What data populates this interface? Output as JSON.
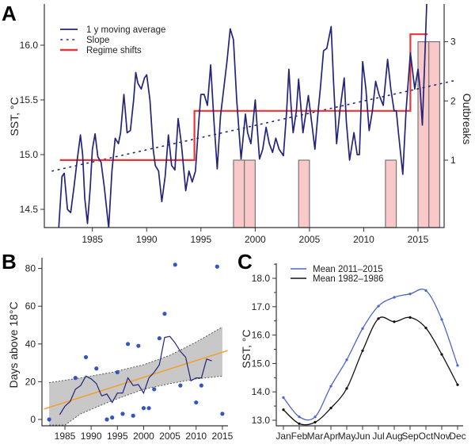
{
  "colors": {
    "sst_line": "#24247a",
    "regime": "#e03a3a",
    "bars": "#f9c8c8",
    "bar_stroke": "#777777",
    "points": "#3556c0",
    "trend": "#f0a030",
    "band": "#c8c8c8",
    "recent": "#4a66c8",
    "early": "#111111"
  },
  "chart_data": [
    {
      "panel": "A",
      "type": "line",
      "ylabel": "SST, °C",
      "y2label": "Outbreaks",
      "xlim": [
        1981.3,
        2018.5
      ],
      "ylim": [
        14.33,
        16.38
      ],
      "y2ticks": [
        1,
        2,
        3
      ],
      "xticks": [
        1985,
        1990,
        1995,
        2000,
        2005,
        2010,
        2015
      ],
      "yticks": [
        "14.5",
        "15.0",
        "15.5",
        "16.0"
      ],
      "legend": {
        "position": "top-left",
        "entries": [
          "1 y moving average",
          "Slope",
          "Regime shifts"
        ]
      },
      "moving_average": [
        [
          1981.9,
          14.33
        ],
        [
          1982.2,
          14.8
        ],
        [
          1982.4,
          14.83
        ],
        [
          1982.7,
          14.5
        ],
        [
          1983.0,
          14.47
        ],
        [
          1983.3,
          14.7
        ],
        [
          1983.6,
          14.95
        ],
        [
          1983.9,
          15.18
        ],
        [
          1984.1,
          15.0
        ],
        [
          1984.3,
          14.6
        ],
        [
          1984.55,
          14.37
        ],
        [
          1984.8,
          14.7
        ],
        [
          1985.0,
          15.05
        ],
        [
          1985.25,
          15.19
        ],
        [
          1985.5,
          14.98
        ],
        [
          1985.8,
          14.93
        ],
        [
          1986.1,
          14.7
        ],
        [
          1986.5,
          14.33
        ],
        [
          1986.8,
          14.85
        ],
        [
          1987.1,
          15.15
        ],
        [
          1987.4,
          15.1
        ],
        [
          1987.6,
          15.2
        ],
        [
          1987.9,
          15.55
        ],
        [
          1988.2,
          15.2
        ],
        [
          1988.5,
          15.22
        ],
        [
          1988.8,
          15.5
        ],
        [
          1989.0,
          15.75
        ],
        [
          1989.2,
          15.65
        ],
        [
          1989.5,
          15.6
        ],
        [
          1989.8,
          15.7
        ],
        [
          1990.0,
          15.73
        ],
        [
          1990.3,
          15.5
        ],
        [
          1990.6,
          15.05
        ],
        [
          1990.8,
          14.9
        ],
        [
          1991.1,
          14.85
        ],
        [
          1991.4,
          14.57
        ],
        [
          1991.7,
          14.8
        ],
        [
          1992.0,
          15.18
        ],
        [
          1992.3,
          14.9
        ],
        [
          1992.6,
          14.86
        ],
        [
          1992.9,
          15.33
        ],
        [
          1993.2,
          15.1
        ],
        [
          1993.6,
          14.67
        ],
        [
          1993.9,
          14.85
        ],
        [
          1994.2,
          14.75
        ],
        [
          1994.5,
          14.85
        ],
        [
          1994.8,
          15.3
        ],
        [
          1995.0,
          15.55
        ],
        [
          1995.3,
          15.55
        ],
        [
          1995.6,
          15.45
        ],
        [
          1995.9,
          15.82
        ],
        [
          1996.2,
          15.3
        ],
        [
          1996.5,
          14.87
        ],
        [
          1996.8,
          15.35
        ],
        [
          1997.1,
          15.6
        ],
        [
          1997.4,
          15.85
        ],
        [
          1997.7,
          16.15
        ],
        [
          1998.0,
          16.05
        ],
        [
          1998.3,
          15.5
        ],
        [
          1998.7,
          14.96
        ],
        [
          1999.1,
          15.37
        ],
        [
          1999.3,
          15.2
        ],
        [
          1999.6,
          15.1
        ],
        [
          2000.0,
          15.5
        ],
        [
          2000.4,
          14.96
        ],
        [
          2000.7,
          15.05
        ],
        [
          2001.0,
          15.25
        ],
        [
          2001.3,
          15.1
        ],
        [
          2001.6,
          15.02
        ],
        [
          2001.9,
          15.15
        ],
        [
          2002.2,
          15.05
        ],
        [
          2002.6,
          14.99
        ],
        [
          2002.9,
          15.4
        ],
        [
          2003.1,
          15.78
        ],
        [
          2003.3,
          15.45
        ],
        [
          2003.5,
          15.2
        ],
        [
          2003.8,
          15.4
        ],
        [
          2004.0,
          15.69
        ],
        [
          2004.4,
          15.2
        ],
        [
          2004.7,
          15.4
        ],
        [
          2004.9,
          15.54
        ],
        [
          2005.2,
          15.3
        ],
        [
          2005.5,
          15.05
        ],
        [
          2005.8,
          15.4
        ],
        [
          2006.0,
          15.6
        ],
        [
          2006.3,
          15.95
        ],
        [
          2006.6,
          15.97
        ],
        [
          2007.0,
          16.17
        ],
        [
          2007.2,
          15.7
        ],
        [
          2007.5,
          15.1
        ],
        [
          2007.8,
          15.4
        ],
        [
          2008.2,
          15.7
        ],
        [
          2008.4,
          15.3
        ],
        [
          2008.7,
          14.95
        ],
        [
          2009.1,
          15.2
        ],
        [
          2009.4,
          15.0
        ],
        [
          2009.6,
          15.0
        ],
        [
          2009.9,
          15.85
        ],
        [
          2010.2,
          15.6
        ],
        [
          2010.5,
          15.22
        ],
        [
          2010.8,
          15.4
        ],
        [
          2011.1,
          15.67
        ],
        [
          2011.4,
          15.55
        ],
        [
          2011.8,
          15.45
        ],
        [
          2012.2,
          15.87
        ],
        [
          2012.5,
          15.6
        ],
        [
          2012.8,
          15.4
        ],
        [
          2013.0,
          15.4
        ],
        [
          2013.2,
          15.2
        ],
        [
          2013.6,
          14.82
        ],
        [
          2013.9,
          15.4
        ],
        [
          2014.3,
          15.93
        ],
        [
          2014.7,
          15.6
        ],
        [
          2015.0,
          15.78
        ],
        [
          2015.2,
          15.6
        ],
        [
          2015.4,
          15.27
        ],
        [
          2015.6,
          15.8
        ],
        [
          2015.8,
          16.38
        ]
      ],
      "slope": [
        [
          1981.3,
          14.85
        ],
        [
          2018.5,
          15.68
        ]
      ],
      "regime_shifts": [
        [
          1982.0,
          14.95
        ],
        [
          1994.4,
          14.95
        ],
        [
          1994.4,
          15.4
        ],
        [
          2014.3,
          15.4
        ],
        [
          2014.3,
          16.1
        ],
        [
          2015.9,
          16.1
        ]
      ],
      "outbreaks": [
        {
          "year": 1998,
          "count": 1
        },
        {
          "year": 1999,
          "count": 1
        },
        {
          "year": 2004,
          "count": 1
        },
        {
          "year": 2012,
          "count": 1
        },
        {
          "year": 2015,
          "count": 3
        },
        {
          "year": 2016,
          "count": 3
        }
      ]
    },
    {
      "panel": "B",
      "type": "scatter",
      "ylabel": "Days above 18°C",
      "xlim": [
        1981,
        2016
      ],
      "ylim": [
        -3,
        85
      ],
      "xticks": [
        1985,
        1990,
        1995,
        2000,
        2005,
        2010,
        2015
      ],
      "yticks": [
        0,
        20,
        40,
        60,
        80
      ],
      "points": [
        [
          1982,
          0
        ],
        [
          1987,
          22
        ],
        [
          1989,
          33
        ],
        [
          1991,
          27
        ],
        [
          1993,
          0
        ],
        [
          1994,
          1
        ],
        [
          1995,
          25
        ],
        [
          1996,
          3
        ],
        [
          1997,
          40
        ],
        [
          1998,
          2
        ],
        [
          1999,
          39
        ],
        [
          2000,
          6
        ],
        [
          2001,
          6
        ],
        [
          2002,
          16
        ],
        [
          2003,
          43
        ],
        [
          2004,
          56
        ],
        [
          2006,
          82
        ],
        [
          2007,
          18
        ],
        [
          2010,
          9
        ],
        [
          2011,
          18
        ],
        [
          2014,
          81
        ],
        [
          2015,
          3
        ]
      ],
      "moving_average": [
        [
          1984,
          2.5
        ],
        [
          1985,
          7
        ],
        [
          1986,
          9.5
        ],
        [
          1987,
          16
        ],
        [
          1988,
          18
        ],
        [
          1989,
          23
        ],
        [
          1990,
          21.5
        ],
        [
          1991,
          19
        ],
        [
          1992,
          12.5
        ],
        [
          1993,
          13.5
        ],
        [
          1994,
          9
        ],
        [
          1995,
          14
        ],
        [
          1996,
          14
        ],
        [
          1997,
          22
        ],
        [
          1998,
          18
        ],
        [
          1999,
          18.5
        ],
        [
          2000,
          14
        ],
        [
          2001,
          22
        ],
        [
          2002,
          25
        ],
        [
          2003,
          29
        ],
        [
          2004,
          43.5
        ],
        [
          2005,
          44
        ],
        [
          2006,
          40.5
        ],
        [
          2007,
          36
        ],
        [
          2008,
          33
        ],
        [
          2009,
          20.5
        ],
        [
          2010,
          22
        ],
        [
          2011,
          22
        ],
        [
          2012,
          32
        ],
        [
          2013,
          31
        ]
      ],
      "trend": [
        [
          1981,
          5.5
        ],
        [
          2016,
          36.5
        ]
      ],
      "ci_upper": [
        [
          1982,
          19.5
        ],
        [
          1988,
          22
        ],
        [
          1994,
          25
        ],
        [
          2000,
          29
        ],
        [
          2005,
          34
        ],
        [
          2010,
          41
        ],
        [
          2015,
          49
        ]
      ],
      "ci_lower": [
        [
          1982,
          -3
        ],
        [
          1985,
          -3
        ],
        [
          1988,
          3
        ],
        [
          1994,
          10
        ],
        [
          2000,
          16
        ],
        [
          2005,
          19
        ],
        [
          2010,
          21.5
        ],
        [
          2015,
          23
        ]
      ]
    },
    {
      "panel": "C",
      "type": "line",
      "ylabel": "SST, °C",
      "ylim": [
        12.8,
        18.6
      ],
      "categories": [
        "Jan",
        "Feb",
        "Mar",
        "Apr",
        "May",
        "Jun",
        "Jul",
        "Aug",
        "Sep",
        "Oct",
        "Nov",
        "Dec"
      ],
      "yticks": [
        "13.0",
        "14.0",
        "15.0",
        "16.0",
        "17.0",
        "18.0"
      ],
      "legend": {
        "position": "top-left"
      },
      "series": [
        {
          "name": "Mean 2011–2015",
          "values": [
            13.8,
            13.12,
            13.12,
            14.2,
            15.13,
            16.23,
            17.02,
            17.33,
            17.45,
            17.57,
            16.55,
            14.93
          ]
        },
        {
          "name": "Mean 1982–1986",
          "values": [
            13.37,
            12.88,
            12.93,
            13.43,
            14.12,
            15.45,
            16.58,
            16.47,
            16.62,
            16.25,
            15.32,
            14.25
          ]
        }
      ]
    }
  ],
  "panels": {
    "a": "A",
    "b": "B",
    "c": "C"
  }
}
